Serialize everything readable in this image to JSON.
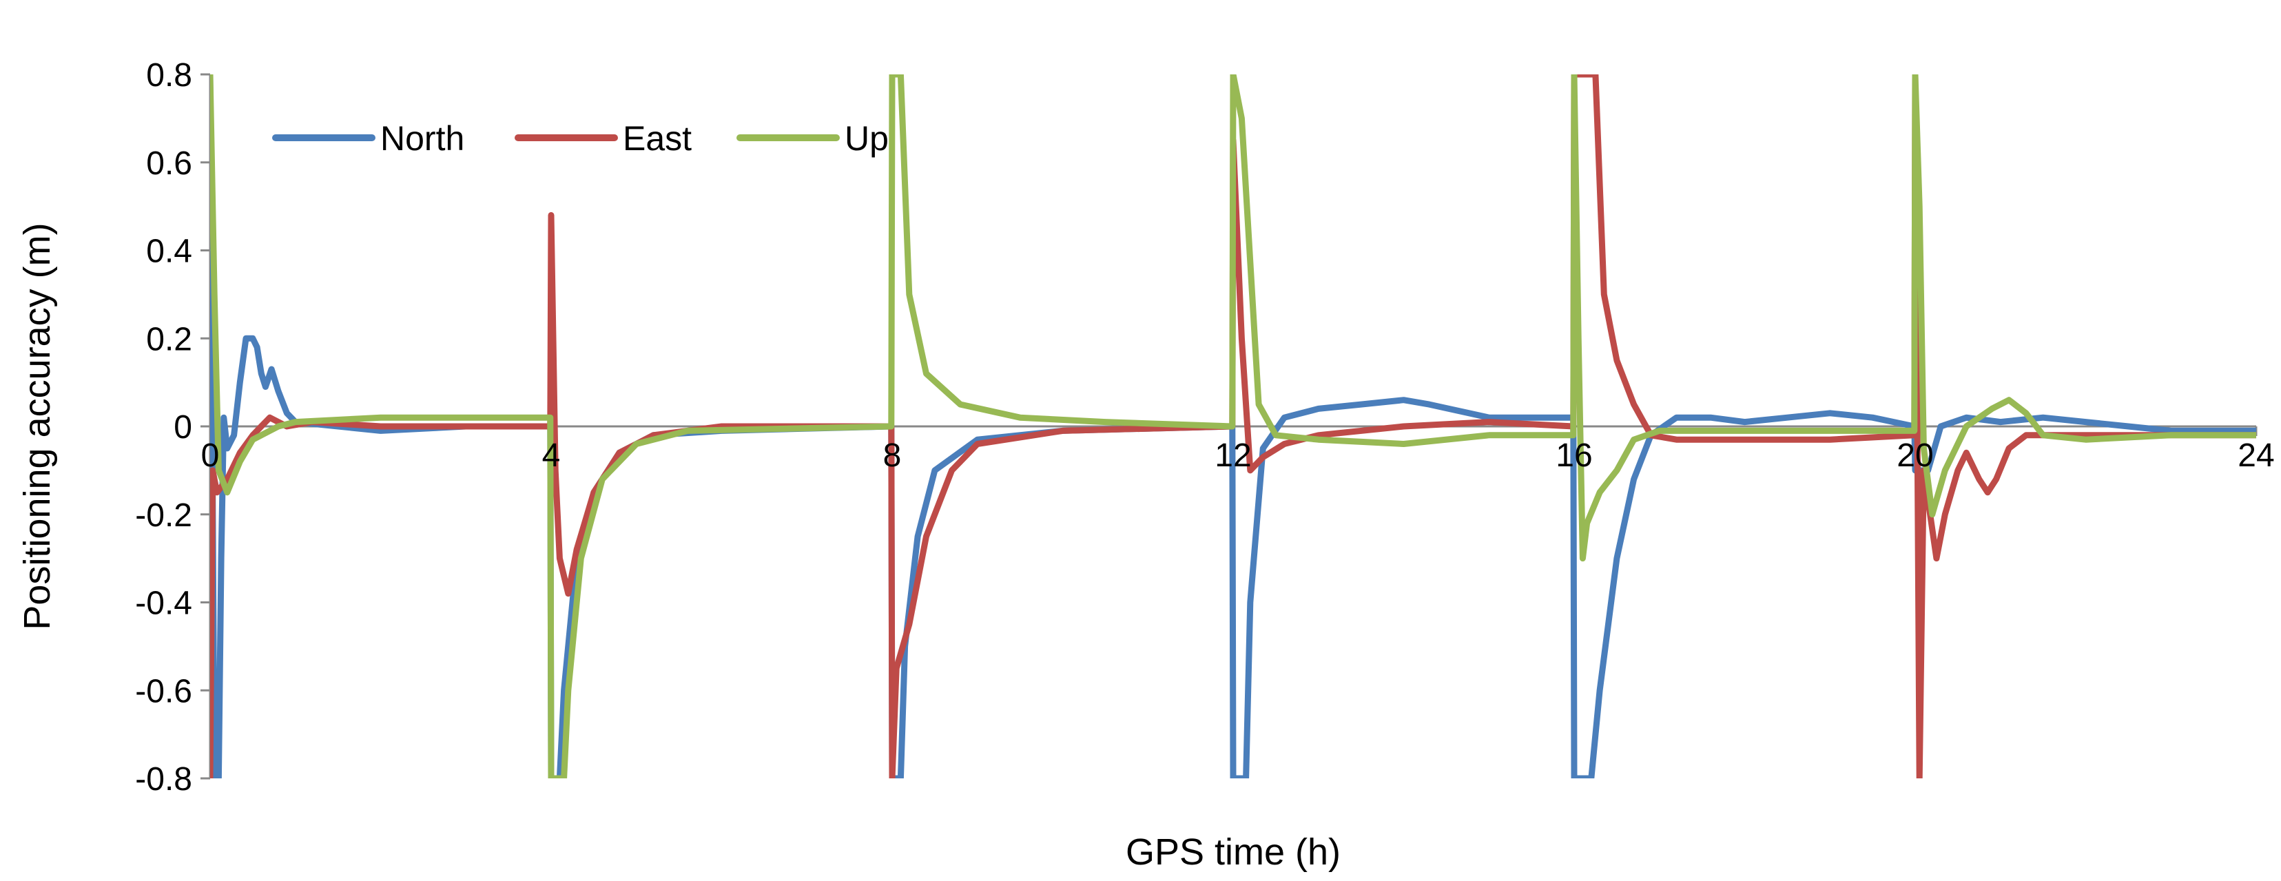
{
  "chart_data": {
    "type": "line",
    "xlabel": "GPS time (h)",
    "ylabel": "Positioning accuracy (m)",
    "xlim": [
      0,
      24
    ],
    "ylim": [
      -0.8,
      0.8
    ],
    "xticks": [
      0,
      4,
      8,
      12,
      16,
      20,
      24
    ],
    "yticks": [
      -0.8,
      -0.6,
      -0.4,
      -0.2,
      0,
      0.2,
      0.4,
      0.6,
      0.8
    ],
    "grid": false,
    "legend_position": "top-left",
    "series": [
      {
        "name": "North",
        "color": "#4a7ebb",
        "points": [
          [
            0.0,
            0.8
          ],
          [
            0.05,
            -0.8
          ],
          [
            0.1,
            -0.8
          ],
          [
            0.13,
            -0.3
          ],
          [
            0.16,
            0.02
          ],
          [
            0.2,
            -0.05
          ],
          [
            0.28,
            -0.02
          ],
          [
            0.35,
            0.1
          ],
          [
            0.42,
            0.2
          ],
          [
            0.5,
            0.2
          ],
          [
            0.55,
            0.18
          ],
          [
            0.6,
            0.12
          ],
          [
            0.65,
            0.09
          ],
          [
            0.72,
            0.13
          ],
          [
            0.8,
            0.08
          ],
          [
            0.9,
            0.03
          ],
          [
            1.0,
            0.01
          ],
          [
            1.5,
            0.0
          ],
          [
            2.0,
            -0.01
          ],
          [
            3.0,
            0.0
          ],
          [
            3.99,
            0.0
          ],
          [
            4.0,
            -0.8
          ],
          [
            4.1,
            -0.8
          ],
          [
            4.15,
            -0.6
          ],
          [
            4.3,
            -0.3
          ],
          [
            4.5,
            -0.15
          ],
          [
            4.8,
            -0.06
          ],
          [
            5.2,
            -0.02
          ],
          [
            6.0,
            -0.01
          ],
          [
            7.99,
            0.0
          ],
          [
            8.0,
            -0.8
          ],
          [
            8.1,
            -0.8
          ],
          [
            8.15,
            -0.5
          ],
          [
            8.3,
            -0.25
          ],
          [
            8.5,
            -0.1
          ],
          [
            9.0,
            -0.03
          ],
          [
            10.0,
            -0.01
          ],
          [
            11.99,
            0.0
          ],
          [
            12.0,
            -0.8
          ],
          [
            12.15,
            -0.8
          ],
          [
            12.2,
            -0.4
          ],
          [
            12.35,
            -0.05
          ],
          [
            12.6,
            0.02
          ],
          [
            13.0,
            0.04
          ],
          [
            13.5,
            0.05
          ],
          [
            14.0,
            0.06
          ],
          [
            14.3,
            0.05
          ],
          [
            15.0,
            0.02
          ],
          [
            15.99,
            0.02
          ],
          [
            16.0,
            -0.8
          ],
          [
            16.2,
            -0.8
          ],
          [
            16.3,
            -0.6
          ],
          [
            16.5,
            -0.3
          ],
          [
            16.7,
            -0.12
          ],
          [
            16.9,
            -0.02
          ],
          [
            17.2,
            0.02
          ],
          [
            17.6,
            0.02
          ],
          [
            18.0,
            0.01
          ],
          [
            18.5,
            0.02
          ],
          [
            19.0,
            0.03
          ],
          [
            19.5,
            0.02
          ],
          [
            19.99,
            0.0
          ],
          [
            20.0,
            -0.1
          ],
          [
            20.15,
            -0.1
          ],
          [
            20.3,
            0.0
          ],
          [
            20.6,
            0.02
          ],
          [
            21.0,
            0.01
          ],
          [
            21.5,
            0.02
          ],
          [
            22.0,
            0.01
          ],
          [
            22.5,
            0.0
          ],
          [
            23.0,
            -0.01
          ],
          [
            24.0,
            -0.01
          ]
        ]
      },
      {
        "name": "East",
        "color": "#be4b48",
        "points": [
          [
            0.0,
            -0.8
          ],
          [
            0.03,
            -0.1
          ],
          [
            0.08,
            -0.15
          ],
          [
            0.2,
            -0.12
          ],
          [
            0.35,
            -0.06
          ],
          [
            0.5,
            -0.02
          ],
          [
            0.7,
            0.02
          ],
          [
            0.9,
            0.0
          ],
          [
            1.2,
            0.01
          ],
          [
            2.0,
            0.0
          ],
          [
            3.0,
            0.0
          ],
          [
            3.99,
            0.0
          ],
          [
            4.0,
            0.48
          ],
          [
            4.05,
            -0.1
          ],
          [
            4.1,
            -0.3
          ],
          [
            4.2,
            -0.38
          ],
          [
            4.3,
            -0.28
          ],
          [
            4.5,
            -0.15
          ],
          [
            4.8,
            -0.06
          ],
          [
            5.2,
            -0.02
          ],
          [
            6.0,
            0.0
          ],
          [
            7.99,
            0.0
          ],
          [
            8.0,
            -0.8
          ],
          [
            8.05,
            -0.55
          ],
          [
            8.2,
            -0.45
          ],
          [
            8.4,
            -0.25
          ],
          [
            8.7,
            -0.1
          ],
          [
            9.0,
            -0.04
          ],
          [
            10.0,
            -0.01
          ],
          [
            11.99,
            0.0
          ],
          [
            12.0,
            0.65
          ],
          [
            12.1,
            0.2
          ],
          [
            12.2,
            -0.1
          ],
          [
            12.35,
            -0.07
          ],
          [
            12.6,
            -0.04
          ],
          [
            13.0,
            -0.02
          ],
          [
            14.0,
            0.0
          ],
          [
            15.0,
            0.01
          ],
          [
            15.99,
            0.0
          ],
          [
            16.0,
            0.8
          ],
          [
            16.25,
            0.8
          ],
          [
            16.35,
            0.3
          ],
          [
            16.5,
            0.15
          ],
          [
            16.7,
            0.05
          ],
          [
            16.9,
            -0.02
          ],
          [
            17.2,
            -0.03
          ],
          [
            18.0,
            -0.03
          ],
          [
            19.0,
            -0.03
          ],
          [
            19.99,
            -0.02
          ],
          [
            20.0,
            0.8
          ],
          [
            20.05,
            -0.8
          ],
          [
            20.1,
            -0.1
          ],
          [
            20.25,
            -0.3
          ],
          [
            20.35,
            -0.2
          ],
          [
            20.5,
            -0.1
          ],
          [
            20.6,
            -0.06
          ],
          [
            20.75,
            -0.12
          ],
          [
            20.85,
            -0.15
          ],
          [
            20.95,
            -0.12
          ],
          [
            21.1,
            -0.05
          ],
          [
            21.3,
            -0.02
          ],
          [
            22.0,
            -0.02
          ],
          [
            23.0,
            -0.02
          ],
          [
            24.0,
            -0.02
          ]
        ]
      },
      {
        "name": "Up",
        "color": "#98b954",
        "points": [
          [
            0.0,
            0.8
          ],
          [
            0.05,
            0.3
          ],
          [
            0.1,
            -0.1
          ],
          [
            0.2,
            -0.15
          ],
          [
            0.35,
            -0.08
          ],
          [
            0.5,
            -0.03
          ],
          [
            0.8,
            0.0
          ],
          [
            1.0,
            0.01
          ],
          [
            2.0,
            0.02
          ],
          [
            3.0,
            0.02
          ],
          [
            3.99,
            0.02
          ],
          [
            4.0,
            -0.8
          ],
          [
            4.15,
            -0.8
          ],
          [
            4.2,
            -0.6
          ],
          [
            4.35,
            -0.3
          ],
          [
            4.6,
            -0.12
          ],
          [
            5.0,
            -0.04
          ],
          [
            5.6,
            -0.01
          ],
          [
            7.99,
            0.0
          ],
          [
            8.0,
            0.8
          ],
          [
            8.1,
            0.8
          ],
          [
            8.2,
            0.3
          ],
          [
            8.4,
            0.12
          ],
          [
            8.8,
            0.05
          ],
          [
            9.5,
            0.02
          ],
          [
            10.5,
            0.01
          ],
          [
            11.99,
            0.0
          ],
          [
            12.0,
            0.8
          ],
          [
            12.1,
            0.7
          ],
          [
            12.3,
            0.05
          ],
          [
            12.5,
            -0.02
          ],
          [
            13.0,
            -0.03
          ],
          [
            14.0,
            -0.04
          ],
          [
            15.0,
            -0.02
          ],
          [
            15.99,
            -0.02
          ],
          [
            16.0,
            0.8
          ],
          [
            16.05,
            0.2
          ],
          [
            16.1,
            -0.3
          ],
          [
            16.15,
            -0.22
          ],
          [
            16.3,
            -0.15
          ],
          [
            16.5,
            -0.1
          ],
          [
            16.7,
            -0.03
          ],
          [
            17.0,
            -0.01
          ],
          [
            18.0,
            -0.01
          ],
          [
            19.0,
            -0.01
          ],
          [
            19.99,
            -0.01
          ],
          [
            20.0,
            0.8
          ],
          [
            20.05,
            0.5
          ],
          [
            20.1,
            -0.05
          ],
          [
            20.2,
            -0.2
          ],
          [
            20.35,
            -0.1
          ],
          [
            20.6,
            0.0
          ],
          [
            20.9,
            0.04
          ],
          [
            21.1,
            0.06
          ],
          [
            21.3,
            0.03
          ],
          [
            21.5,
            -0.02
          ],
          [
            22.0,
            -0.03
          ],
          [
            23.0,
            -0.02
          ],
          [
            24.0,
            -0.02
          ]
        ]
      }
    ]
  }
}
